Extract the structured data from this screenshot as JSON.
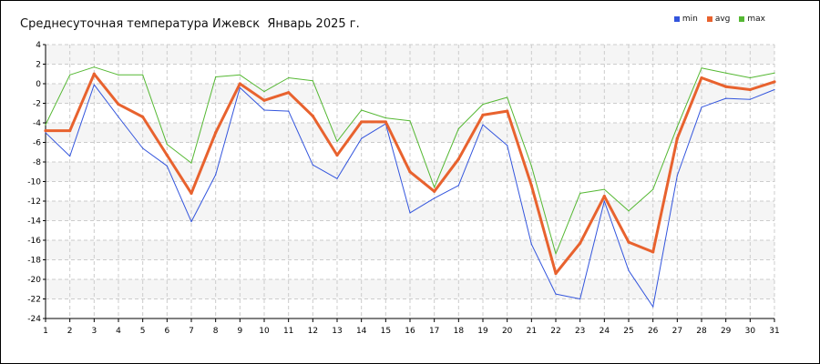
{
  "chart_data": {
    "type": "line",
    "title": "Среднесуточная температура Ижевск  Январь 2025 г.",
    "x": [
      1,
      2,
      3,
      4,
      5,
      6,
      7,
      8,
      9,
      10,
      11,
      12,
      13,
      14,
      15,
      16,
      17,
      18,
      19,
      20,
      21,
      22,
      23,
      24,
      25,
      26,
      27,
      28,
      29,
      30,
      31
    ],
    "x_ticks": [
      "1",
      "2",
      "3",
      "4",
      "5",
      "6",
      "7",
      "8",
      "9",
      "10",
      "11",
      "12",
      "13",
      "14",
      "15",
      "16",
      "17",
      "18",
      "19",
      "20",
      "21",
      "22",
      "23",
      "24",
      "25",
      "26",
      "27",
      "28",
      "29",
      "30",
      "31"
    ],
    "y_ticks": [
      "4",
      "2",
      "0",
      "-2",
      "-4",
      "-6",
      "-8",
      "-10",
      "-12",
      "-14",
      "-16",
      "-18",
      "-20",
      "-22",
      "-24"
    ],
    "ylim": [
      -24,
      4
    ],
    "xlim": [
      1,
      31
    ],
    "grid": true,
    "legend_position": "top-right",
    "series": [
      {
        "name": "min",
        "color": "#3355dd",
        "width": 1,
        "values": [
          -5.0,
          -7.4,
          -0.1,
          -3.4,
          -6.6,
          -8.4,
          -14.1,
          -9.3,
          -0.4,
          -2.7,
          -2.8,
          -8.3,
          -9.7,
          -5.6,
          -4.1,
          -13.2,
          -11.7,
          -10.4,
          -4.2,
          -6.3,
          -16.4,
          -21.5,
          -22.0,
          -12.0,
          -19.1,
          -22.8,
          -9.4,
          -2.4,
          -1.5,
          -1.6,
          -0.6
        ]
      },
      {
        "name": "avg",
        "color": "#e8622e",
        "width": 3,
        "values": [
          -4.8,
          -4.8,
          1.0,
          -2.1,
          -3.4,
          -7.3,
          -11.2,
          -5.0,
          0.0,
          -1.7,
          -0.9,
          -3.3,
          -7.3,
          -3.9,
          -3.9,
          -9.0,
          -11.0,
          -7.7,
          -3.2,
          -2.8,
          -10.4,
          -19.4,
          -16.3,
          -11.5,
          -16.2,
          -17.2,
          -5.6,
          0.6,
          -0.3,
          -0.6,
          0.2
        ]
      },
      {
        "name": "max",
        "color": "#55b833",
        "width": 1,
        "values": [
          -4.2,
          0.9,
          1.7,
          0.9,
          0.9,
          -6.2,
          -8.1,
          0.7,
          0.9,
          -0.8,
          0.6,
          0.3,
          -5.9,
          -2.7,
          -3.5,
          -3.8,
          -10.6,
          -4.6,
          -2.1,
          -1.4,
          -8.4,
          -17.4,
          -11.2,
          -10.8,
          -13.0,
          -10.8,
          -4.4,
          1.6,
          1.1,
          0.6,
          1.1
        ]
      }
    ]
  }
}
